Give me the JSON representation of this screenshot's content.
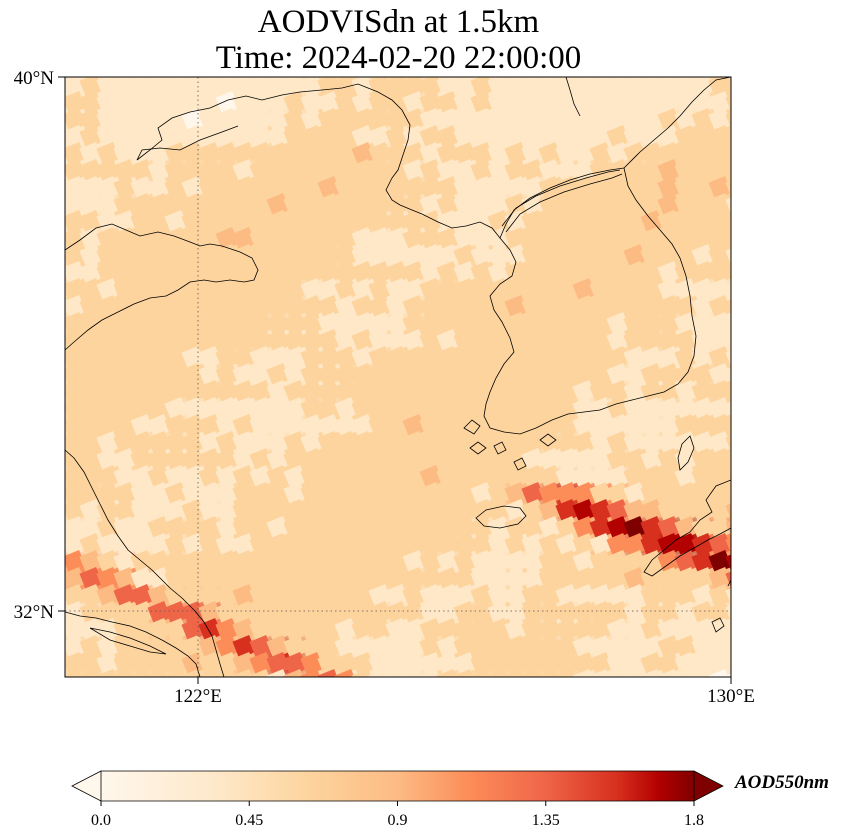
{
  "title": {
    "line1": "AODVISdn at 1.5km",
    "line2": "Time: 2024-02-20 22:00:00"
  },
  "map": {
    "lat_labels": [
      "40°N",
      "32°N"
    ],
    "lon_labels": [
      "122°E",
      "130°E"
    ],
    "lat_range": [
      31,
      40
    ],
    "lon_range": [
      120,
      130
    ],
    "gridlines": "dotted at 32°N and 122°E",
    "colormap": "OrRd",
    "colors": {
      "low": "#fff7ec",
      "mid": "#fc8d59",
      "high": "#7f0000",
      "coastline": "#000000"
    }
  },
  "colorbar": {
    "tick_labels": [
      "0.0",
      "0.45",
      "0.9",
      "1.35",
      "1.8"
    ],
    "range": [
      0,
      1.8
    ],
    "extend": "both",
    "units": "AOD550nm"
  }
}
